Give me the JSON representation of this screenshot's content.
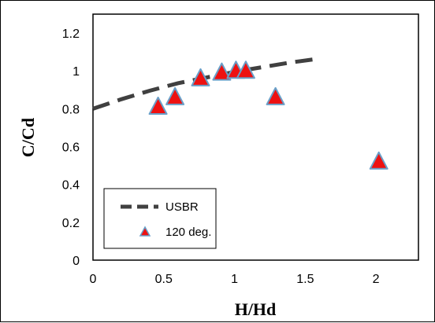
{
  "chart_data": {
    "type": "scatter",
    "xlabel": "H/Hd",
    "ylabel": "C/Cd",
    "xlim": [
      0,
      2.3
    ],
    "ylim": [
      0,
      1.3
    ],
    "x_ticks": [
      "0",
      "0.5",
      "1",
      "1.5",
      "2"
    ],
    "x_tick_values": [
      0,
      0.5,
      1,
      1.5,
      2
    ],
    "y_ticks": [
      "0",
      "0.2",
      "0.4",
      "0.6",
      "0.8",
      "1",
      "1.2"
    ],
    "y_tick_values": [
      0,
      0.2,
      0.4,
      0.6,
      0.8,
      1,
      1.2
    ],
    "grid": false,
    "legend_position": "bottom-left",
    "series": [
      {
        "name": "USBR",
        "kind": "dashed-line",
        "color": "#404040",
        "x": [
          0,
          0.2,
          0.4,
          0.6,
          0.8,
          1.0,
          1.2,
          1.4,
          1.6
        ],
        "y": [
          0.8,
          0.85,
          0.895,
          0.935,
          0.965,
          0.995,
          1.02,
          1.045,
          1.065
        ]
      },
      {
        "name": "120 deg.",
        "kind": "triangle-marker",
        "color": "#ee1111",
        "edge_color": "#6a9fc8",
        "x": [
          0.46,
          0.58,
          0.76,
          0.91,
          1.01,
          1.08,
          1.29,
          2.02
        ],
        "y": [
          0.81,
          0.86,
          0.96,
          0.99,
          1.0,
          1.0,
          0.86,
          0.52
        ]
      }
    ]
  }
}
